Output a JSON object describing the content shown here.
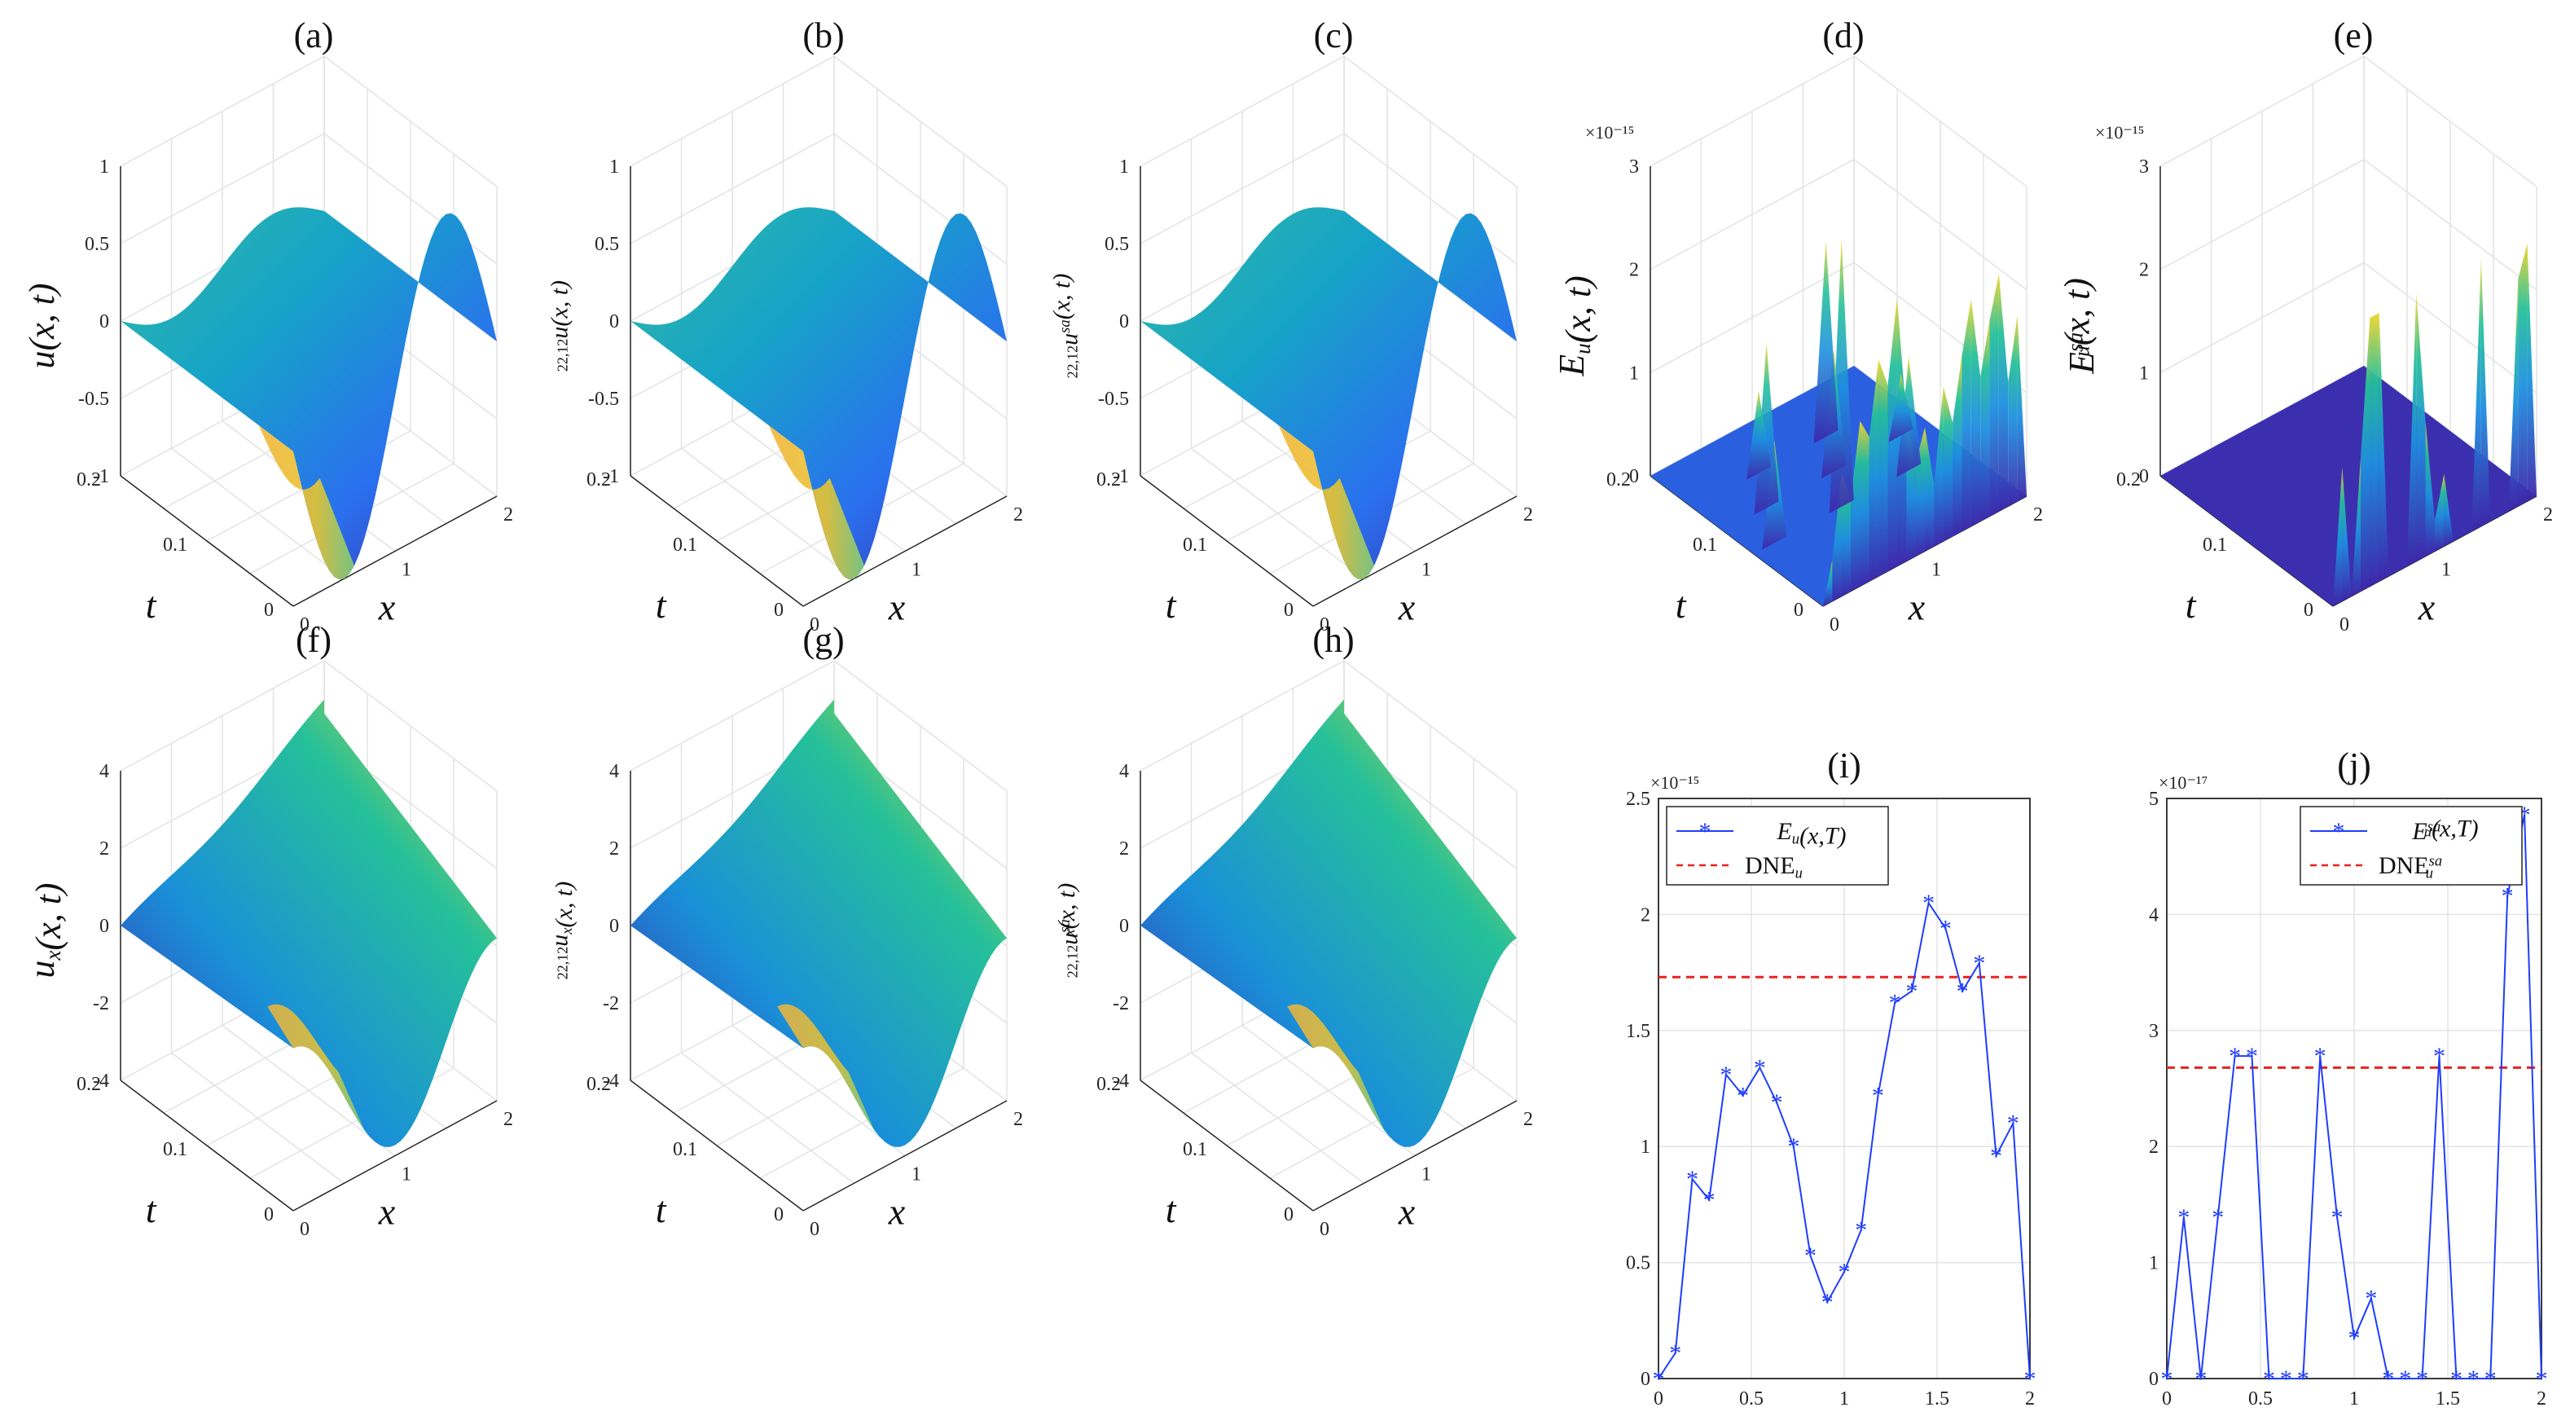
{
  "figure": {
    "colors": {
      "axis": "#262626",
      "grid": "#e3e3e3",
      "line": "#1f3cff",
      "dne": "#e8221e",
      "surface_low": "#3e26a8",
      "surface_mid": "#1fb6a8",
      "surface_high": "#f9dd1d"
    }
  },
  "panels3d": [
    {
      "id": "a",
      "title": "(a)",
      "zlabel": "u(x, t)",
      "zticks": [
        "1",
        "0.5",
        "0",
        "-0.5",
        "-1"
      ],
      "exponent": "",
      "surface": "u"
    },
    {
      "id": "b",
      "title": "(b)",
      "zlabel": "22,12u(x, t)",
      "zticks": [
        "1",
        "0.5",
        "0",
        "-0.5",
        "-1"
      ],
      "exponent": "",
      "surface": "u"
    },
    {
      "id": "c",
      "title": "(c)",
      "zlabel": "22,12u^sa(x, t)",
      "zticks": [
        "1",
        "0.5",
        "0",
        "-0.5",
        "-1"
      ],
      "exponent": "",
      "surface": "u"
    },
    {
      "id": "d",
      "title": "(d)",
      "zlabel": "E_u(x, t)",
      "zticks": [
        "3",
        "2",
        "1",
        "0"
      ],
      "exponent": "×10⁻¹⁵",
      "surface": "err"
    },
    {
      "id": "e",
      "title": "(e)",
      "zlabel": "E_u^sa(x, t)",
      "zticks": [
        "3",
        "2",
        "1",
        "0"
      ],
      "exponent": "×10⁻¹⁵",
      "surface": "errsa"
    },
    {
      "id": "f",
      "title": "(f)",
      "zlabel": "u_x(x, t)",
      "zticks": [
        "4",
        "2",
        "0",
        "-2",
        "-4"
      ],
      "exponent": "",
      "surface": "ux"
    },
    {
      "id": "g",
      "title": "(g)",
      "zlabel": "22,12u_x(x, t)",
      "zticks": [
        "4",
        "2",
        "0",
        "-2",
        "-4"
      ],
      "exponent": "",
      "surface": "ux"
    },
    {
      "id": "h",
      "title": "(h)",
      "zlabel": "22,12u_x^sa(x, t)",
      "zticks": [
        "4",
        "2",
        "0",
        "-2",
        "-4"
      ],
      "exponent": "",
      "surface": "ux"
    }
  ],
  "axes3d": {
    "x_ticks": [
      "0",
      "1",
      "2"
    ],
    "t_ticks": [
      "0",
      "0.1",
      "0.2"
    ],
    "xlabel": "x",
    "tlabel": "t"
  },
  "chart_data": [
    {
      "type": "surface",
      "panel": "(a)",
      "title": "(a)",
      "xlabel": "x",
      "ylabel": "t",
      "zlabel": "u(x, t)",
      "xlim": [
        0,
        2
      ],
      "ylim": [
        0,
        0.2
      ],
      "zlim": [
        -1,
        1
      ]
    },
    {
      "type": "surface",
      "panel": "(b)",
      "title": "(b)",
      "xlabel": "x",
      "ylabel": "t",
      "zlabel": "22,12u(x, t)",
      "xlim": [
        0,
        2
      ],
      "ylim": [
        0,
        0.2
      ],
      "zlim": [
        -1,
        1
      ]
    },
    {
      "type": "surface",
      "panel": "(c)",
      "title": "(c)",
      "xlabel": "x",
      "ylabel": "t",
      "zlabel": "22,12u^sa(x, t)",
      "xlim": [
        0,
        2
      ],
      "ylim": [
        0,
        0.2
      ],
      "zlim": [
        -1,
        1
      ]
    },
    {
      "type": "surface",
      "panel": "(d)",
      "title": "(d)",
      "xlabel": "x",
      "ylabel": "t",
      "zlabel": "E_u(x, t)",
      "xlim": [
        0,
        2
      ],
      "ylim": [
        0,
        0.2
      ],
      "zlim": [
        0,
        3
      ],
      "zscale": "1e-15"
    },
    {
      "type": "surface",
      "panel": "(e)",
      "title": "(e)",
      "xlabel": "x",
      "ylabel": "t",
      "zlabel": "E_u^sa(x, t)",
      "xlim": [
        0,
        2
      ],
      "ylim": [
        0,
        0.2
      ],
      "zlim": [
        0,
        3
      ],
      "zscale": "1e-15"
    },
    {
      "type": "surface",
      "panel": "(f)",
      "title": "(f)",
      "xlabel": "x",
      "ylabel": "t",
      "zlabel": "u_x(x, t)",
      "xlim": [
        0,
        2
      ],
      "ylim": [
        0,
        0.2
      ],
      "zlim": [
        -4,
        4
      ]
    },
    {
      "type": "surface",
      "panel": "(g)",
      "title": "(g)",
      "xlabel": "x",
      "ylabel": "t",
      "zlabel": "22,12u_x(x, t)",
      "xlim": [
        0,
        2
      ],
      "ylim": [
        0,
        0.2
      ],
      "zlim": [
        -4,
        4
      ]
    },
    {
      "type": "surface",
      "panel": "(h)",
      "title": "(h)",
      "xlabel": "x",
      "ylabel": "t",
      "zlabel": "22,12u_x^sa(x, t)",
      "xlim": [
        0,
        2
      ],
      "ylim": [
        0,
        0.2
      ],
      "zlim": [
        -4,
        4
      ]
    },
    {
      "type": "line",
      "panel": "(i)",
      "title": "(i)",
      "xlabel": "x",
      "ylabel": "",
      "exponent": "×10⁻¹⁵",
      "xlim": [
        0,
        2
      ],
      "ylim": [
        0,
        2.5
      ],
      "xticks": [
        "0",
        "0.5",
        "1",
        "1.5",
        "2"
      ],
      "yticks": [
        "0",
        "0.5",
        "1",
        "1.5",
        "2",
        "2.5"
      ],
      "legend": [
        "E_u(x,T)",
        "DNE_u"
      ],
      "legend_location": "top-left",
      "x": [
        0,
        0.0909,
        0.1818,
        0.2727,
        0.3636,
        0.4545,
        0.5455,
        0.6364,
        0.7273,
        0.8182,
        0.9091,
        1.0,
        1.0909,
        1.1818,
        1.2727,
        1.3636,
        1.4545,
        1.5455,
        1.6364,
        1.7273,
        1.8182,
        1.9091,
        2.0
      ],
      "series": [
        {
          "name": "E_u(x,T)",
          "values": [
            0,
            0.11,
            0.86,
            0.77,
            1.31,
            1.22,
            1.34,
            1.19,
            1.0,
            0.53,
            0.33,
            0.46,
            0.64,
            1.22,
            1.62,
            1.67,
            2.05,
            1.94,
            1.67,
            1.79,
            0.96,
            1.1,
            0
          ]
        }
      ],
      "hline": {
        "name": "DNE_u",
        "value": 1.73
      }
    },
    {
      "type": "line",
      "panel": "(j)",
      "title": "(j)",
      "xlabel": "x",
      "ylabel": "",
      "exponent": "×10⁻¹⁷",
      "xlim": [
        0,
        2
      ],
      "ylim": [
        0,
        5
      ],
      "xticks": [
        "0",
        "0.5",
        "1",
        "1.5",
        "2"
      ],
      "yticks": [
        "0",
        "1",
        "2",
        "3",
        "4",
        "5"
      ],
      "legend": [
        "E_u^sa(x,T)",
        "DNE_u^sa"
      ],
      "legend_location": "top-right",
      "x": [
        0,
        0.0909,
        0.1818,
        0.2727,
        0.3636,
        0.4545,
        0.5455,
        0.6364,
        0.7273,
        0.8182,
        0.9091,
        1.0,
        1.0909,
        1.1818,
        1.2727,
        1.3636,
        1.4545,
        1.5455,
        1.6364,
        1.7273,
        1.8182,
        1.9091,
        2.0
      ],
      "series": [
        {
          "name": "E_u^sa(x,T)",
          "values": [
            0,
            1.39,
            0,
            1.39,
            2.78,
            2.78,
            0,
            0,
            0,
            2.78,
            1.39,
            0.35,
            0.69,
            0,
            0,
            0,
            2.78,
            0,
            0,
            0,
            4.16,
            4.86,
            0
          ]
        }
      ],
      "hline": {
        "name": "DNE_u^sa",
        "value": 2.68
      }
    }
  ]
}
